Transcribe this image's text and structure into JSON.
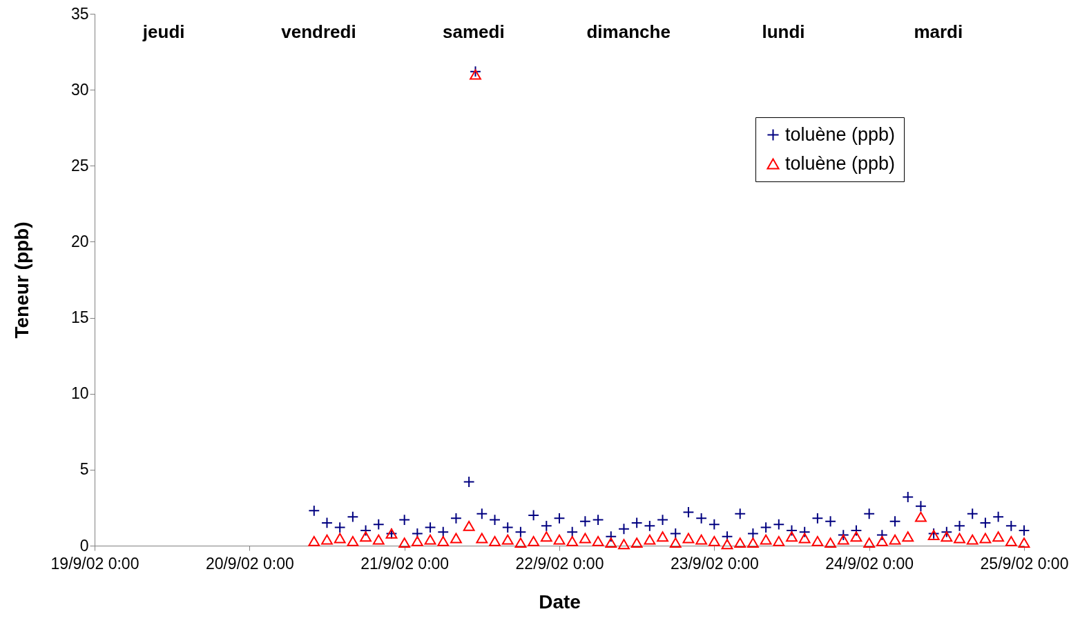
{
  "chart_data": {
    "type": "scatter",
    "xlabel": "Date",
    "ylabel": "Teneur (ppb)",
    "annotations": [
      "jeudi",
      "vendredi",
      "samedi",
      "dimanche",
      "lundi",
      "mardi"
    ],
    "x": [
      "--09-20T10:00",
      "--09-20T12:00",
      "--09-20T14:00",
      "--09-20T16:00",
      "--09-20T18:00",
      "--09-20T20:00",
      "--09-20T22:00",
      "--09-21T00:00",
      "--09-21T02:00",
      "--09-21T04:00",
      "--09-21T06:00",
      "--09-21T08:00",
      "--09-21T10:00",
      "--09-21T11:00",
      "--09-21T12:00",
      "--09-21T14:00",
      "--09-21T16:00",
      "--09-21T18:00",
      "--09-21T20:00",
      "--09-21T22:00",
      "--09-22T00:00",
      "--09-22T02:00",
      "--09-22T04:00",
      "--09-22T06:00",
      "--09-22T08:00",
      "--09-22T10:00",
      "--09-22T12:00",
      "--09-22T14:00",
      "--09-22T16:00",
      "--09-22T18:00",
      "--09-22T20:00",
      "--09-22T22:00",
      "--09-23T00:00",
      "--09-23T02:00",
      "--09-23T04:00",
      "--09-23T06:00",
      "--09-23T08:00",
      "--09-23T10:00",
      "--09-23T12:00",
      "--09-23T14:00",
      "--09-23T16:00",
      "--09-23T18:00",
      "--09-23T20:00",
      "--09-23T22:00",
      "--09-24T00:00",
      "--09-24T02:00",
      "--09-24T04:00",
      "--09-24T06:00",
      "--09-24T08:00",
      "--09-24T10:00",
      "--09-24T12:00",
      "--09-24T14:00",
      "--09-24T16:00",
      "--09-24T18:00",
      "--09-24T20:00",
      "--09-24T22:00",
      "--09-25T00:00"
    ],
    "series": [
      {
        "name": "toluène (ppb)",
        "color": "#000080",
        "marker": "cross",
        "values": [
          2.3,
          1.5,
          1.2,
          1.9,
          1.0,
          1.4,
          0.8,
          1.7,
          0.8,
          1.2,
          0.9,
          1.8,
          4.2,
          31.2,
          2.1,
          1.7,
          1.2,
          0.9,
          2.0,
          1.3,
          1.8,
          0.9,
          1.6,
          1.7,
          0.6,
          1.1,
          1.5,
          1.3,
          1.7,
          0.8,
          2.2,
          1.8,
          1.4,
          0.6,
          2.1,
          0.8,
          1.2,
          1.4,
          1.0,
          0.9,
          1.8,
          1.6,
          0.7,
          1.0,
          2.1,
          0.7,
          1.6,
          3.2,
          2.6,
          0.8,
          0.9,
          1.3,
          2.1,
          1.5,
          1.9,
          1.3,
          1.0
        ]
      },
      {
        "name": "toluène (ppb)",
        "color": "#ff0000",
        "marker": "triangle",
        "values": [
          0.3,
          0.4,
          0.5,
          0.3,
          0.6,
          0.4,
          0.8,
          0.2,
          0.3,
          0.4,
          0.3,
          0.5,
          1.3,
          31.0,
          0.5,
          0.3,
          0.4,
          0.2,
          0.3,
          0.6,
          0.4,
          0.3,
          0.5,
          0.3,
          0.2,
          0.1,
          0.2,
          0.4,
          0.6,
          0.2,
          0.5,
          0.4,
          0.3,
          0.1,
          0.2,
          0.2,
          0.4,
          0.3,
          0.6,
          0.5,
          0.3,
          0.2,
          0.4,
          0.6,
          0.2,
          0.3,
          0.4,
          0.6,
          1.9,
          0.7,
          0.6,
          0.5,
          0.4,
          0.5,
          0.6,
          0.3,
          0.2
        ]
      }
    ],
    "xlim": [
      "--09-19T00:00",
      "--09-25T00:00"
    ],
    "xticks": [
      {
        "value": "--09-19T00:00",
        "label": "19/9/02 0:00"
      },
      {
        "value": "--09-20T00:00",
        "label": "20/9/02 0:00"
      },
      {
        "value": "--09-21T00:00",
        "label": "21/9/02 0:00"
      },
      {
        "value": "--09-22T00:00",
        "label": "22/9/02 0:00"
      },
      {
        "value": "--09-23T00:00",
        "label": "23/9/02 0:00"
      },
      {
        "value": "--09-24T00:00",
        "label": "24/9/02 0:00"
      },
      {
        "value": "--09-25T00:00",
        "label": "25/9/02 0:00"
      }
    ],
    "ylim": [
      0,
      35
    ],
    "yticks": [
      0,
      5,
      10,
      15,
      20,
      25,
      30,
      35
    ],
    "grid": false,
    "legend": "top right"
  }
}
